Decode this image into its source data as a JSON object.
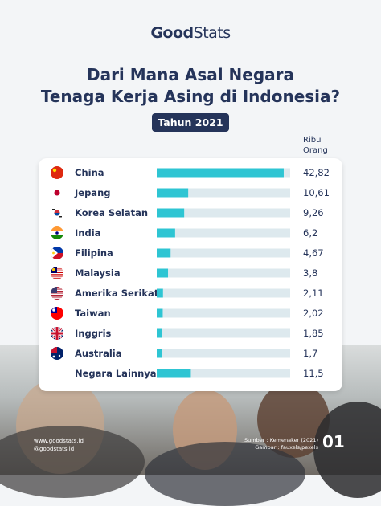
{
  "brand": {
    "logo_bold": "Good",
    "logo_thin": "Stats"
  },
  "title_line1": "Dari Mana Asal Negara",
  "title_line2": "Tenaga Kerja Asing di Indonesia?",
  "badge": "Tahun 2021",
  "unit_line1": "Ribu",
  "unit_line2": "Orang",
  "colors": {
    "bar": "#2ec5d3",
    "track": "#dde9ee",
    "navy": "#25345a"
  },
  "chart_data": {
    "type": "bar",
    "orientation": "horizontal",
    "categories": [
      "China",
      "Jepang",
      "Korea Selatan",
      "India",
      "Filipina",
      "Malaysia",
      "Amerika Serikat",
      "Taiwan",
      "Inggris",
      "Australia",
      "Negara Lainnya"
    ],
    "values": [
      42.82,
      10.61,
      9.26,
      6.2,
      4.67,
      3.8,
      2.11,
      2.02,
      1.85,
      1.7,
      11.5
    ],
    "value_labels": [
      "42,82",
      "10,61",
      "9,26",
      "6,2",
      "4,67",
      "3,8",
      "2,11",
      "2,02",
      "1,85",
      "1,7",
      "11,5"
    ],
    "flags": [
      "china-flag",
      "japan-flag",
      "south-korea-flag",
      "india-flag",
      "philippines-flag",
      "malaysia-flag",
      "usa-flag",
      "taiwan-flag",
      "uk-flag",
      "australia-flag",
      ""
    ],
    "xlim": [
      0,
      45
    ]
  },
  "footer": {
    "website": "www.goodstats.id",
    "social": "@goodstats.id",
    "source": "Sumber : Kemenaker (2021)",
    "image_credit": "Gambar : fauxels/pexels",
    "page": "01"
  }
}
